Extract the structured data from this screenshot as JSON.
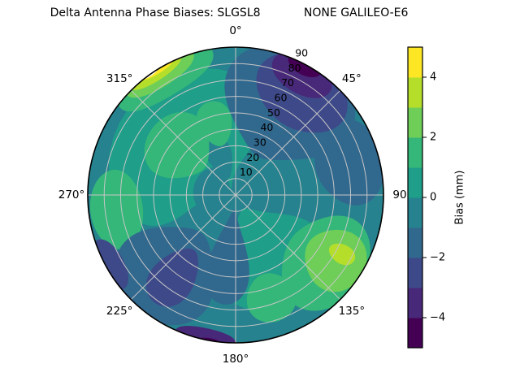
{
  "title": "Delta Antenna Phase Biases: SLGSL8            NONE GALILEO-E6",
  "chart_data": {
    "type": "polar_contour",
    "title": "Delta Antenna Phase Biases: SLGSL8            NONE GALILEO-E6",
    "angular_ticks": [
      {
        "deg": 0,
        "label": "0°"
      },
      {
        "deg": 45,
        "label": "45°"
      },
      {
        "deg": 90,
        "label": "90"
      },
      {
        "deg": 135,
        "label": "135°"
      },
      {
        "deg": 180,
        "label": "180°"
      },
      {
        "deg": 225,
        "label": "225°"
      },
      {
        "deg": 270,
        "label": "270°"
      },
      {
        "deg": 315,
        "label": "315°"
      }
    ],
    "radial_ticks": [
      {
        "value": 10,
        "label": "10"
      },
      {
        "value": 20,
        "label": "20"
      },
      {
        "value": 30,
        "label": "30"
      },
      {
        "value": 40,
        "label": "40"
      },
      {
        "value": 50,
        "label": "50"
      },
      {
        "value": 60,
        "label": "60"
      },
      {
        "value": 70,
        "label": "70"
      },
      {
        "value": 80,
        "label": "80"
      },
      {
        "value": 90,
        "label": "90"
      }
    ],
    "radial_max": 90,
    "radial_label_azimuth_deg": 25,
    "grid": true,
    "grid_color": "#c6c6c6",
    "outline_color": "#000000",
    "levels": [
      -5,
      -4,
      -3,
      -2,
      -1,
      0,
      1,
      2,
      3,
      4,
      5
    ],
    "level_colors": [
      "#440154",
      "#482878",
      "#3e4989",
      "#31688e",
      "#26828e",
      "#1f9e89",
      "#35b779",
      "#6ece58",
      "#b5de2b",
      "#fde725"
    ],
    "base_color": "#26828e",
    "colorbar": {
      "label": "Bias (mm)",
      "range": [
        -5,
        5
      ],
      "segment_colors_bottom_to_top": [
        "#440154",
        "#482878",
        "#3e4989",
        "#31688e",
        "#26828e",
        "#1f9e89",
        "#35b779",
        "#6ece58",
        "#b5de2b",
        "#fde725"
      ],
      "ticks": [
        {
          "value": 4,
          "label": "4"
        },
        {
          "value": 2,
          "label": "2"
        },
        {
          "value": 0,
          "label": "0"
        },
        {
          "value": -2,
          "label": "−2"
        },
        {
          "value": -4,
          "label": "−4"
        }
      ]
    },
    "features": [
      {
        "name": "upper-left-green-teal-zone",
        "bias_mm": 1,
        "color": "#1f9e89",
        "az": 315,
        "r": 44,
        "azs": 135,
        "rs": 80
      },
      {
        "name": "lower-right-green-teal-zone",
        "bias_mm": 1,
        "color": "#1f9e89",
        "az": 152,
        "r": 42,
        "azs": 85,
        "rs": 65
      },
      {
        "name": "center-dark-teal-patch",
        "bias_mm": -1,
        "color": "#26828e",
        "az": 280,
        "r": 13,
        "azs": 110,
        "rs": 26
      },
      {
        "name": "inner-dark-teal-curl",
        "bias_mm": -1,
        "color": "#26828e",
        "az": 338,
        "r": 24,
        "azs": 34,
        "rs": 26
      },
      {
        "name": "upper-left-green-fan",
        "bias_mm": 2,
        "color": "#35b779",
        "az": 310,
        "r": 45,
        "azs": 52,
        "rs": 40
      },
      {
        "name": "north-green-patch",
        "bias_mm": 2,
        "color": "#35b779",
        "az": 344,
        "r": 45,
        "azs": 26,
        "rs": 28
      },
      {
        "name": "west-rim-green-band",
        "bias_mm": 2,
        "color": "#35b779",
        "az": 263,
        "r": 73,
        "azs": 38,
        "rs": 32
      },
      {
        "name": "nw-streak-green",
        "bias_mm": 2,
        "color": "#35b779",
        "az": 329,
        "r": 87,
        "azs": 44,
        "rs": 30
      },
      {
        "name": "nw-streak-light-green",
        "bias_mm": 3,
        "color": "#6ece58",
        "az": 328,
        "r": 90,
        "azs": 31,
        "rs": 22
      },
      {
        "name": "nw-streak-yellow-green",
        "bias_mm": 4,
        "color": "#b5de2b",
        "az": 327,
        "r": 92,
        "azs": 24,
        "rs": 16
      },
      {
        "name": "nw-streak-yellow",
        "bias_mm": 5,
        "color": "#fde725",
        "az": 328,
        "r": 94,
        "azs": 19,
        "rs": 13
      },
      {
        "name": "nw-rim-data-gap",
        "bias_mm": null,
        "color": "#ffffff",
        "az": 325,
        "r": 93.5,
        "azs": 12,
        "rs": 9
      },
      {
        "name": "ne-blue-sector",
        "bias_mm": -2,
        "color": "#31688e",
        "az": 30,
        "r": 63,
        "azs": 72,
        "rs": 72
      },
      {
        "name": "east-blue-arm",
        "bias_mm": -2,
        "color": "#31688e",
        "az": 74,
        "r": 72,
        "azs": 42,
        "rs": 42
      },
      {
        "name": "ne-navy-blob",
        "bias_mm": -3,
        "color": "#3e4989",
        "az": 33,
        "r": 74,
        "azs": 46,
        "rs": 44
      },
      {
        "name": "ne-purple-blob",
        "bias_mm": -4,
        "color": "#482878",
        "az": 29,
        "r": 84,
        "azs": 27,
        "rs": 24
      },
      {
        "name": "ne-dark-purple-core",
        "bias_mm": -5,
        "color": "#440154",
        "az": 28,
        "r": 90,
        "azs": 14,
        "rs": 13
      },
      {
        "name": "south-center-blue-tongue",
        "bias_mm": -2,
        "color": "#31688e",
        "az": 186,
        "r": 38,
        "azs": 34,
        "rs": 58
      },
      {
        "name": "sw-blue-region",
        "bias_mm": -2,
        "color": "#31688e",
        "az": 221,
        "r": 62,
        "azs": 56,
        "rs": 62
      },
      {
        "name": "sw-navy-blob",
        "bias_mm": -3,
        "color": "#3e4989",
        "az": 217,
        "r": 62,
        "azs": 24,
        "rs": 40
      },
      {
        "name": "sw-rim-navy-arc",
        "bias_mm": -3,
        "color": "#3e4989",
        "az": 241,
        "r": 88,
        "azs": 22,
        "rs": 18
      },
      {
        "name": "south-rim-purple-band",
        "bias_mm": -4,
        "color": "#482878",
        "az": 192,
        "r": 90,
        "azs": 24,
        "rs": 14
      },
      {
        "name": "south-rim-dark-core",
        "bias_mm": -5,
        "color": "#440154",
        "az": 190,
        "r": 93,
        "azs": 11,
        "rs": 9
      },
      {
        "name": "east-green-blob",
        "bias_mm": 2,
        "color": "#35b779",
        "az": 127,
        "r": 68,
        "azs": 52,
        "rs": 50
      },
      {
        "name": "se-green-patch",
        "bias_mm": 2,
        "color": "#35b779",
        "az": 161,
        "r": 66,
        "azs": 26,
        "rs": 30
      },
      {
        "name": "east-light-green-blob",
        "bias_mm": 3,
        "color": "#6ece58",
        "az": 123,
        "r": 72,
        "azs": 30,
        "rs": 38
      },
      {
        "name": "east-bright-green-core",
        "bias_mm": 4,
        "color": "#b5de2b",
        "az": 119,
        "r": 74,
        "azs": 9,
        "rs": 17
      }
    ]
  }
}
